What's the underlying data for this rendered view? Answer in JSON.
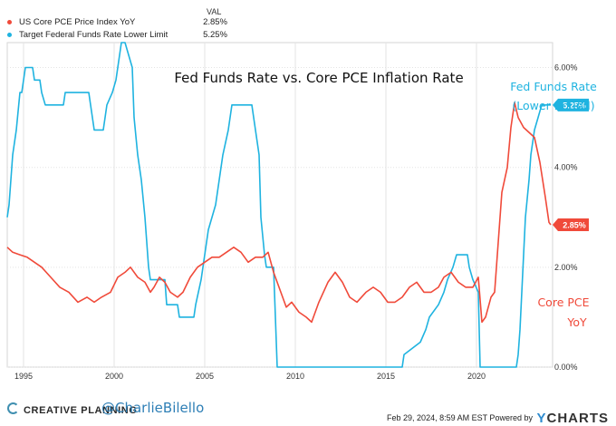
{
  "legend": {
    "header": "VAL",
    "items": [
      {
        "name": "US Core PCE Price Index YoY",
        "value": "2.85%",
        "color": "#f04a3a"
      },
      {
        "name": "Target Federal Funds Rate Lower Limit",
        "value": "5.25%",
        "color": "#1fb3e0"
      }
    ]
  },
  "footer": {
    "logo_text": "CREATIVE PLANNING",
    "handle": "@CharlieBilello",
    "timestamp": "Feb 29, 2024, 8:59 AM EST Powered by",
    "brand_prefix": "Y",
    "brand_rest": "CHARTS"
  },
  "chart_data": {
    "type": "line",
    "title": "Fed Funds Rate vs. Core PCE Inflation Rate",
    "annotations": {
      "fed_line1": "Fed Funds Rate",
      "fed_line2": "(Lower Bound)",
      "pce_line1": "Core PCE",
      "pce_line2": "YoY"
    },
    "x_ticks": [
      "1995",
      "2000",
      "2005",
      "2010",
      "2015",
      "2020"
    ],
    "y_ticks": [
      "0.00%",
      "2.00%",
      "4.00%",
      "6.00%"
    ],
    "xlim": [
      1994.1,
      2024.2
    ],
    "ylim": [
      0,
      6.5
    ],
    "grid": true,
    "end_labels": {
      "pce": "2.85%",
      "fed": "5.25%"
    },
    "series": [
      {
        "name": "Target Federal Funds Rate Lower Limit",
        "color": "#1fb3e0",
        "x": [
          1994.1,
          1994.2,
          1994.3,
          1994.4,
          1994.6,
          1994.8,
          1994.9,
          1995.1,
          1995.5,
          1995.6,
          1995.9,
          1996.0,
          1996.2,
          1997.2,
          1997.3,
          1998.6,
          1998.8,
          1998.9,
          1999.4,
          1999.6,
          1999.9,
          2000.1,
          2000.2,
          2000.4,
          2000.5,
          2000.6,
          2001.0,
          2001.1,
          2001.3,
          2001.5,
          2001.7,
          2001.9,
          2002.0,
          2002.8,
          2002.9,
          2003.5,
          2003.6,
          2004.4,
          2004.5,
          2004.8,
          2005.2,
          2005.6,
          2006.0,
          2006.3,
          2006.5,
          2007.6,
          2007.8,
          2008.0,
          2008.1,
          2008.3,
          2008.4,
          2008.8,
          2008.9,
          2009.0,
          2015.9,
          2016.0,
          2016.9,
          2017.2,
          2017.4,
          2017.9,
          2018.2,
          2018.4,
          2018.7,
          2018.9,
          2019.5,
          2019.6,
          2019.8,
          2020.1,
          2020.2,
          2022.2,
          2022.3,
          2022.4,
          2022.5,
          2022.6,
          2022.7,
          2022.9,
          2023.0,
          2023.2,
          2023.4,
          2023.6,
          2024.1
        ],
        "y": [
          3.0,
          3.25,
          3.75,
          4.25,
          4.75,
          5.5,
          5.5,
          6.0,
          6.0,
          5.75,
          5.75,
          5.5,
          5.25,
          5.25,
          5.5,
          5.5,
          5.0,
          4.75,
          4.75,
          5.25,
          5.5,
          5.75,
          6.0,
          6.5,
          6.5,
          6.5,
          6.0,
          5.0,
          4.25,
          3.75,
          3.0,
          2.0,
          1.75,
          1.75,
          1.25,
          1.25,
          1.0,
          1.0,
          1.25,
          1.75,
          2.75,
          3.25,
          4.25,
          4.75,
          5.25,
          5.25,
          4.75,
          4.25,
          3.0,
          2.25,
          2.0,
          2.0,
          1.0,
          0.0,
          0.0,
          0.25,
          0.5,
          0.75,
          1.0,
          1.25,
          1.5,
          1.75,
          2.0,
          2.25,
          2.25,
          2.0,
          1.75,
          1.5,
          0.0,
          0.0,
          0.25,
          0.75,
          1.5,
          2.25,
          3.0,
          3.75,
          4.25,
          4.75,
          5.0,
          5.25,
          5.25
        ]
      },
      {
        "name": "US Core PCE Price Index YoY",
        "color": "#f04a3a",
        "x": [
          1994.1,
          1994.4,
          1994.8,
          1995.2,
          1995.6,
          1996.0,
          1996.5,
          1997.0,
          1997.5,
          1998.0,
          1998.5,
          1998.9,
          1999.3,
          1999.8,
          2000.2,
          2000.6,
          2000.9,
          2001.3,
          2001.7,
          2002.0,
          2002.2,
          2002.5,
          2002.8,
          2003.1,
          2003.5,
          2003.8,
          2004.2,
          2004.6,
          2005.0,
          2005.4,
          2005.8,
          2006.2,
          2006.6,
          2007.0,
          2007.4,
          2007.8,
          2008.2,
          2008.5,
          2008.8,
          2009.2,
          2009.5,
          2009.8,
          2010.2,
          2010.6,
          2010.9,
          2011.3,
          2011.8,
          2012.2,
          2012.6,
          2013.0,
          2013.4,
          2013.9,
          2014.3,
          2014.7,
          2015.1,
          2015.5,
          2015.9,
          2016.3,
          2016.7,
          2017.1,
          2017.5,
          2017.9,
          2018.2,
          2018.6,
          2019.0,
          2019.4,
          2019.8,
          2020.1,
          2020.3,
          2020.5,
          2020.8,
          2021.0,
          2021.2,
          2021.4,
          2021.7,
          2021.9,
          2022.1,
          2022.3,
          2022.6,
          2022.9,
          2023.2,
          2023.5,
          2023.8,
          2024.0,
          2024.1
        ],
        "y": [
          2.4,
          2.3,
          2.25,
          2.2,
          2.1,
          2.0,
          1.8,
          1.6,
          1.5,
          1.3,
          1.4,
          1.3,
          1.4,
          1.5,
          1.8,
          1.9,
          2.0,
          1.8,
          1.7,
          1.5,
          1.6,
          1.8,
          1.7,
          1.5,
          1.4,
          1.5,
          1.8,
          2.0,
          2.1,
          2.2,
          2.2,
          2.3,
          2.4,
          2.3,
          2.1,
          2.2,
          2.2,
          2.3,
          1.9,
          1.5,
          1.2,
          1.3,
          1.1,
          1.0,
          0.9,
          1.3,
          1.7,
          1.9,
          1.7,
          1.4,
          1.3,
          1.5,
          1.6,
          1.5,
          1.3,
          1.3,
          1.4,
          1.6,
          1.7,
          1.5,
          1.5,
          1.6,
          1.8,
          1.9,
          1.7,
          1.6,
          1.6,
          1.8,
          0.9,
          1.0,
          1.4,
          1.5,
          2.5,
          3.5,
          4.0,
          4.8,
          5.3,
          5.0,
          4.8,
          4.7,
          4.6,
          4.1,
          3.4,
          2.9,
          2.85
        ]
      }
    ]
  }
}
